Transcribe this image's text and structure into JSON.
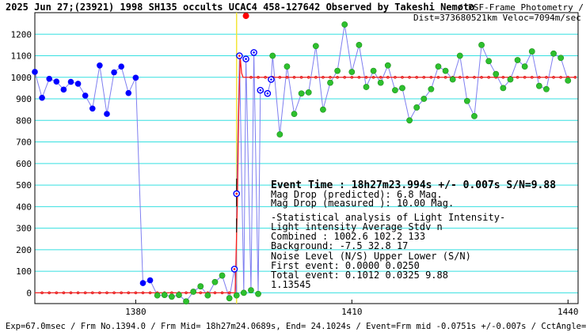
{
  "header": {
    "title": "2025 Jun 27;(23921) 1998 SH135 occults UCAC4 458-127642 Observed by Takeshi Nemoto",
    "method": "/ PSF-Frame Photometry /",
    "geometry": "Dist=373680521km Veloc=7094m/sec"
  },
  "annotations": {
    "event_time": "Event Time : 18h27m23.994s  +/- 0.007s  S/N=9.88",
    "mag_pred": "Mag Drop (predicted):  6.8   Mag.",
    "mag_meas": "Mag Drop (measured ): 10.00  Mag.",
    "stat_title": "-Statistical analysis of Light Intensity-",
    "stat_header": "Light intensity     Average   Stdv      n",
    "stat_combined": "   Combined  :       1002.6    102.2    133",
    "stat_background": "  Background:         -7.5     32.8     17",
    "noise_header": "Noise Level (N/S)   Upper     Lower    (S/N)",
    "noise_first": "   First event:     0.0000    0.0250",
    "noise_total": "   Total event:     0.1012    0.0325    9.88",
    "scale_factor": "1.13545"
  },
  "footer": {
    "text": "Exp=67.0msec / Frm No.1394.0 / Frm Mid= 18h27m24.0689s, End= 24.1024s / Event=Frm mid -0.0751s +/-0.007s / CctAngle=0.0deg"
  },
  "chart_data": {
    "type": "line",
    "title": "2025 Jun 27;(23921) 1998 SH135 occults UCAC4 458-127642 Observed by Takeshi Nemoto",
    "xlabel": "",
    "ylabel": "",
    "xlim": [
      1366.0,
      1441.4
    ],
    "ylim": [
      -50,
      1300
    ],
    "x_ticks": [
      1380,
      1410,
      1440
    ],
    "y_ticks": [
      0,
      100,
      200,
      300,
      400,
      500,
      600,
      700,
      800,
      900,
      1000,
      1100,
      1200
    ],
    "grid": true,
    "event_frame": 1394.0,
    "series": [
      {
        "kind": "pre-event",
        "color": "#0000ff",
        "x": [
          1366,
          1367,
          1368,
          1369,
          1370,
          1371,
          1372,
          1373,
          1374,
          1375,
          1376,
          1377,
          1378,
          1379
        ],
        "y": [
          1025,
          905,
          993,
          980,
          943,
          979,
          970,
          915,
          855,
          1055,
          830,
          1023,
          1050,
          927
        ]
      },
      {
        "kind": "blue-low",
        "color": "#0000ff",
        "x": [
          1380,
          1381,
          1382
        ],
        "y": [
          998,
          45,
          58
        ]
      },
      {
        "kind": "background",
        "color": "#2ec02e",
        "x": [
          1383,
          1384,
          1385,
          1386,
          1387,
          1388,
          1389,
          1390,
          1391,
          1392,
          1393,
          1394,
          1395,
          1396,
          1397
        ],
        "y": [
          -12,
          -10,
          -18,
          -10,
          -40,
          5,
          30,
          -12,
          50,
          80,
          -25,
          -12,
          0,
          12,
          -5
        ]
      },
      {
        "kind": "transition",
        "color": "#0000ff",
        "x": [
          1393.7,
          1394.0,
          1394.4
        ],
        "y": [
          110,
          460,
          1100
        ]
      },
      {
        "kind": "post-event-open",
        "color": "#0000ff",
        "x": [
          1395.3,
          1396.4,
          1397.3,
          1398.3,
          1398.8
        ],
        "y": [
          1085,
          1115,
          940,
          925,
          990
        ]
      },
      {
        "kind": "post-event",
        "color": "#2ec02e",
        "x": [
          1399,
          1400,
          1401,
          1402,
          1403,
          1404,
          1405,
          1406,
          1407,
          1408,
          1409,
          1410,
          1411,
          1412,
          1413,
          1414,
          1415,
          1416,
          1417,
          1418,
          1419,
          1420,
          1421,
          1422,
          1423,
          1424,
          1425,
          1426,
          1427,
          1428,
          1429,
          1430,
          1431,
          1432,
          1433,
          1434,
          1435,
          1436,
          1437,
          1438,
          1439,
          1440
        ],
        "y": [
          1100,
          735,
          1050,
          830,
          925,
          930,
          1145,
          850,
          975,
          1030,
          1245,
          1025,
          1150,
          955,
          1030,
          975,
          1055,
          940,
          950,
          800,
          860,
          900,
          945,
          1050,
          1030,
          990,
          1100,
          890,
          820,
          1150,
          1075,
          1015,
          950,
          990,
          1080,
          1050,
          1120,
          960,
          945,
          1110,
          1090,
          985
        ]
      }
    ]
  }
}
